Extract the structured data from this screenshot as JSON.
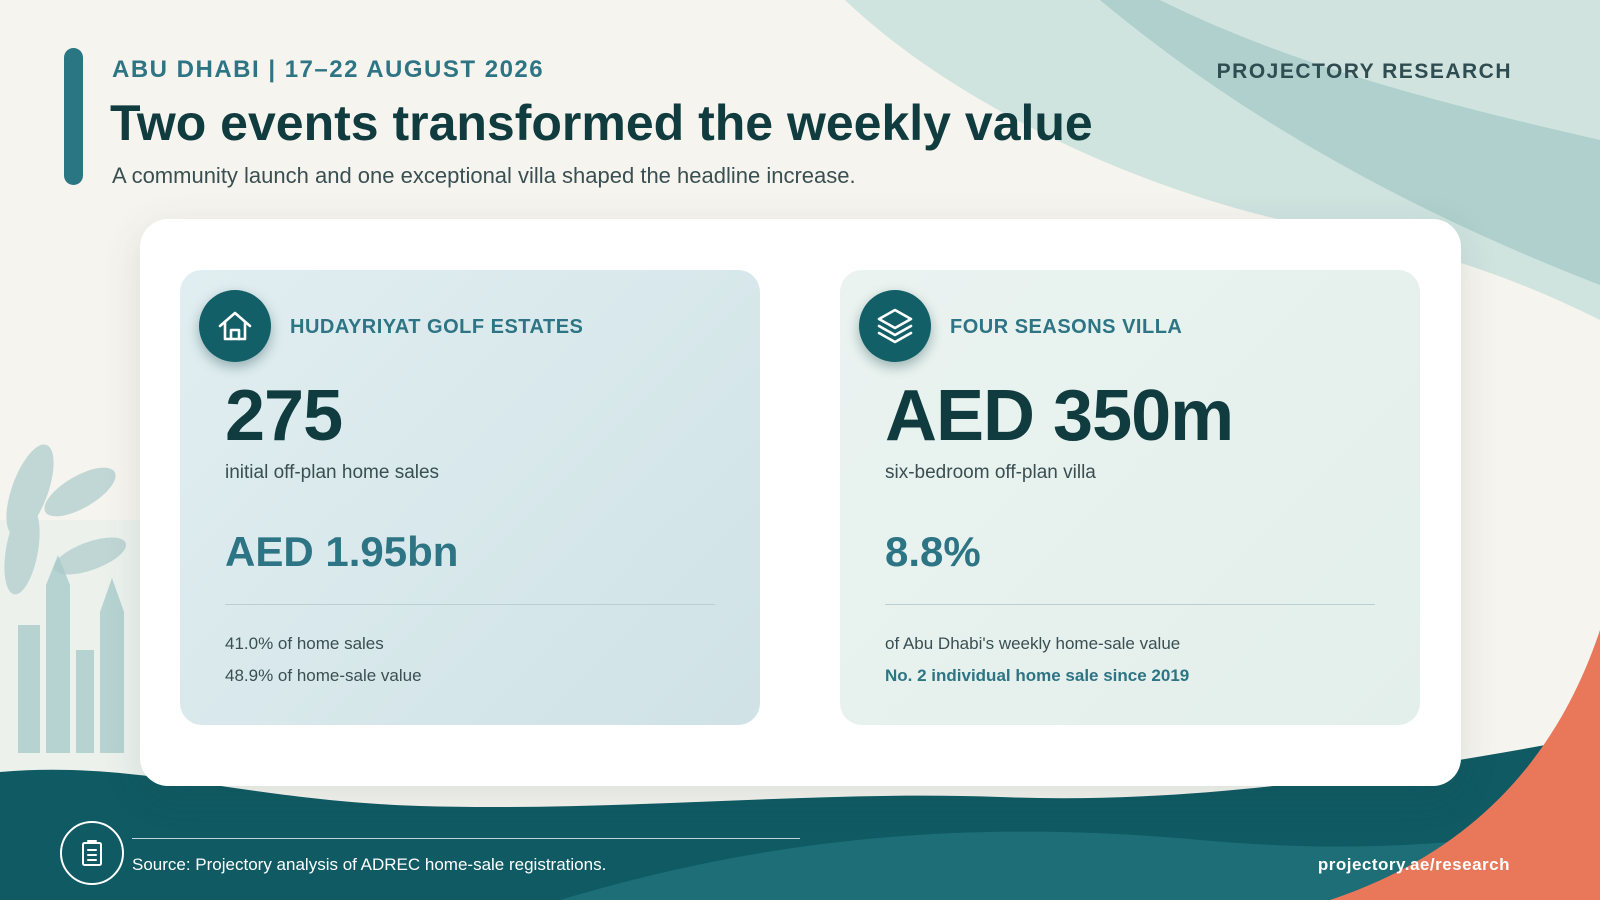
{
  "header": {
    "eyebrow": "ABU DHABI | 17–22 AUGUST 2026",
    "brand": "PROJECTORY RESEARCH",
    "title": "Two events transformed the weekly value",
    "subtitle": "A community launch and one exceptional villa shaped the headline increase."
  },
  "cards": [
    {
      "icon": "house-icon",
      "label": "HUDAYRIYAT GOLF ESTATES",
      "big_value": "275",
      "big_caption": "initial off-plan home sales",
      "mid_value": "AED 1.95bn",
      "note_1": "41.0% of home sales",
      "note_2": "48.9% of home-sale value"
    },
    {
      "icon": "layers-icon",
      "label": "FOUR SEASONS VILLA",
      "big_value": "AED 350m",
      "big_caption": "six-bedroom off-plan villa",
      "mid_value": "8.8%",
      "note_1": "of Abu Dhabi's weekly home-sale value",
      "note_2": "No. 2 individual home sale since 2019"
    }
  ],
  "footer": {
    "icon": "document-icon",
    "source": "Source: Projectory analysis of ADREC home-sale registrations.",
    "url": "projectory.ae/research"
  },
  "colors": {
    "background": "#f6f4ee",
    "accent_teal": "#2d7584",
    "dark_teal": "#135f67",
    "heading": "#103c3f",
    "coral": "#e9775a"
  }
}
